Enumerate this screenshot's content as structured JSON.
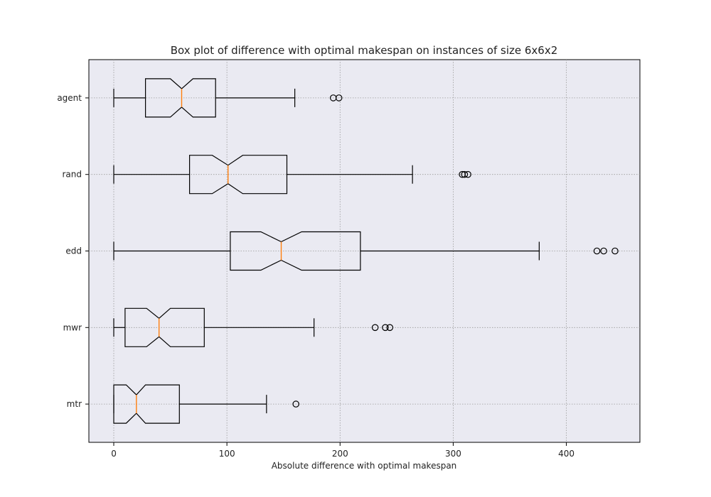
{
  "chart_data": {
    "type": "boxplot",
    "orientation": "horizontal",
    "notched": true,
    "title": "Box plot of difference with optimal makespan on instances of size 6x6x2",
    "xlabel": "Absolute difference with optimal makespan",
    "ylabel": "",
    "xlim": [
      -22,
      465
    ],
    "xticks": [
      "0",
      "100",
      "200",
      "300",
      "400"
    ],
    "grid": true,
    "categories": [
      "agent",
      "rand",
      "edd",
      "mwr",
      "mtr"
    ],
    "series": [
      {
        "name": "agent",
        "whisker_low": 0,
        "q1": 28,
        "median": 60,
        "q3": 90,
        "whisker_high": 160,
        "notch_low": 50,
        "notch_high": 70,
        "outliers": [
          194,
          199
        ]
      },
      {
        "name": "rand",
        "whisker_low": 0,
        "q1": 67,
        "median": 101,
        "q3": 153,
        "whisker_high": 264,
        "notch_low": 87,
        "notch_high": 114,
        "outliers": [
          308,
          310,
          313
        ]
      },
      {
        "name": "edd",
        "whisker_low": 0,
        "q1": 103,
        "median": 148,
        "q3": 218,
        "whisker_high": 376,
        "notch_low": 130,
        "notch_high": 166,
        "outliers": [
          427,
          433,
          443
        ]
      },
      {
        "name": "mwr",
        "whisker_low": 0,
        "q1": 10,
        "median": 40,
        "q3": 80,
        "whisker_high": 177,
        "notch_low": 29,
        "notch_high": 50,
        "outliers": [
          231,
          240,
          244
        ]
      },
      {
        "name": "mtr",
        "whisker_low": 0,
        "q1": 0,
        "median": 20,
        "q3": 58,
        "whisker_high": 135,
        "notch_low": 11,
        "notch_high": 28,
        "outliers": [
          161
        ]
      }
    ],
    "colors": {
      "plot_background": "#EAEAF2",
      "box_edge": "#000000",
      "median": "#FF7F0E",
      "grid": "#999999"
    }
  }
}
